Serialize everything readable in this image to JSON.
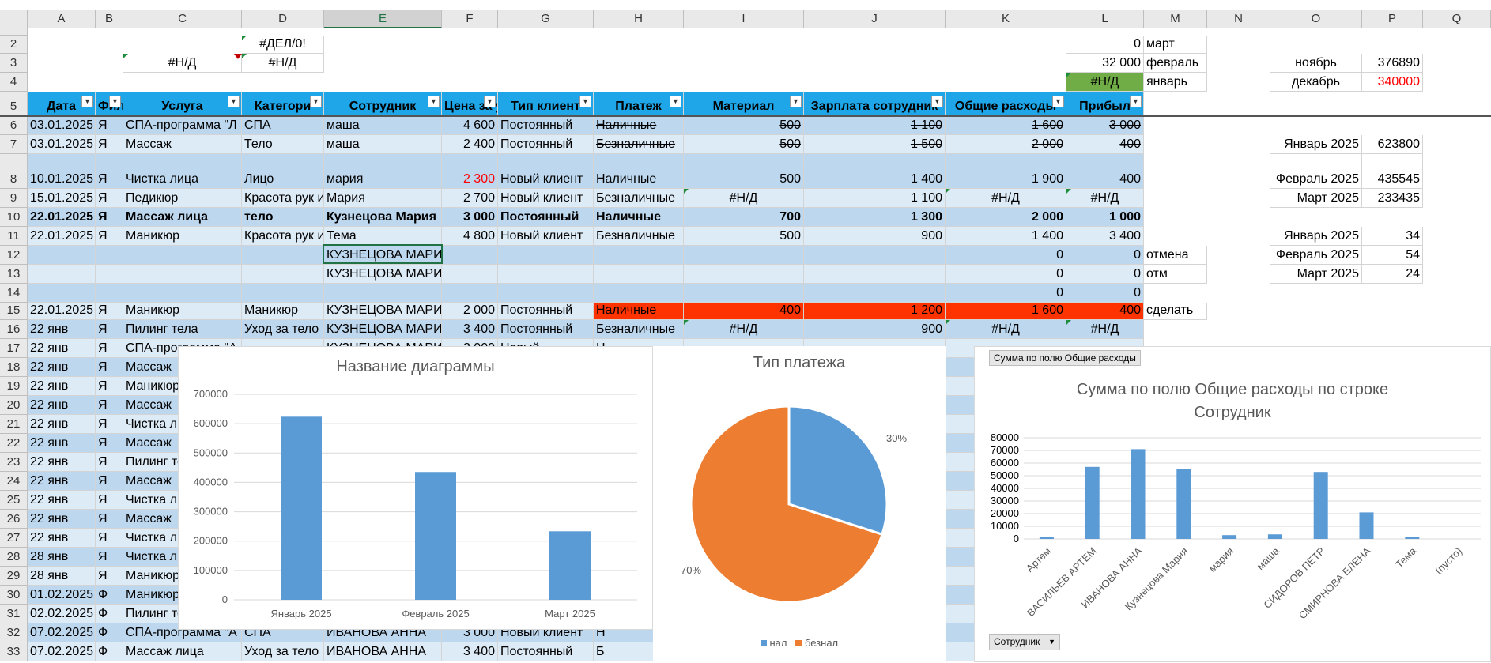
{
  "colors": {
    "header_fill": "#1ea6e8",
    "band1": "#bdd7ee",
    "band2": "#ddebf7",
    "green": "#70ad47",
    "red_fill": "#ff3300",
    "bar": "#5b9bd5",
    "pie_orange": "#ed7d31",
    "error_red": "#ff0000"
  },
  "columns": [
    "A",
    "B",
    "C",
    "D",
    "E",
    "F",
    "G",
    "H",
    "I",
    "J",
    "K",
    "L",
    "M",
    "N",
    "O",
    "P",
    "Q"
  ],
  "row_numbers": [
    "2",
    "3",
    "4",
    "5",
    "6",
    "7",
    "8",
    "9",
    "10",
    "11",
    "12",
    "13",
    "14",
    "15",
    "16",
    "17",
    "18",
    "19",
    "20",
    "21",
    "22",
    "23",
    "24",
    "25",
    "26",
    "27",
    "28",
    "29",
    "30",
    "31",
    "32",
    "33"
  ],
  "top": {
    "d2": "#ДЕЛ/0!",
    "c3": "#Н/Д",
    "d3": "#Н/Д",
    "l2": "0",
    "m2": "март",
    "l3": "32 000",
    "m3": "февраль",
    "o3": "ноябрь",
    "p3": "376890",
    "l4": "#Н/Д",
    "m4": "январь",
    "o4": "декабрь",
    "p4": "340000"
  },
  "headers": {
    "a": "Дата",
    "b": "Фил",
    "c": "Услуга",
    "d": "Категори",
    "e": "Сотрудник",
    "f": "Цена за у",
    "g": "Тип клиент",
    "h": "Платеж",
    "i": "Материал",
    "j": "Зарплата сотрудник",
    "k": "Общие расходы",
    "l": "Прибыл"
  },
  "rows": [
    {
      "a": "03.01.2025",
      "b": "Я",
      "c": "СПА-программа \"Л",
      "d": "СПА",
      "e": "маша",
      "f": "4 600",
      "g": "Постоянный",
      "h": "Наличные",
      "i": "500",
      "j": "1 100",
      "k": "1 600",
      "l": "3 000"
    },
    {
      "a": "03.01.2025",
      "b": "Я",
      "c": "Массаж",
      "d": "Тело",
      "e": "маша",
      "f": "2 400",
      "g": "Постоянный",
      "h": "Безналичные",
      "i": "500",
      "j": "1 500",
      "k": "2 000",
      "l": "400"
    },
    {
      "a": "10.01.2025",
      "b": "Я",
      "c": "Чистка лица",
      "d": "Лицо",
      "e": "мария",
      "f": "2 300",
      "g": "Новый клиент",
      "h": "Наличные",
      "i": "500",
      "j": "1 400",
      "k": "1 900",
      "l": "400"
    },
    {
      "a": "15.01.2025",
      "b": "Я",
      "c": "Педикюр",
      "d": "Красота рук и",
      "e": "Мария",
      "f": "2 700",
      "g": "Новый клиент",
      "h": "Безналичные",
      "i": "#Н/Д",
      "j": "1 100",
      "k": "#Н/Д",
      "l": "#Н/Д"
    },
    {
      "a": "22.01.2025",
      "b": "Я",
      "c": "Массаж лица",
      "d": "тело",
      "e": "Кузнецова Мария",
      "f": "3 000",
      "g": "Постоянный",
      "h": "Наличные",
      "i": "700",
      "j": "1 300",
      "k": "2 000",
      "l": "1 000"
    },
    {
      "a": "22.01.2025",
      "b": "Я",
      "c": "Маникюр",
      "d": "Красота рук и",
      "e": "Тема",
      "f": "4 800",
      "g": "Новый клиент",
      "h": "Безналичные",
      "i": "500",
      "j": "900",
      "k": "1 400",
      "l": "3 400"
    },
    {
      "a": "",
      "b": "",
      "c": "",
      "d": "",
      "e": "КУЗНЕЦОВА МАРИЯ",
      "f": "",
      "g": "",
      "h": "",
      "i": "",
      "j": "",
      "k": "0",
      "l": "0",
      "m": "отмена"
    },
    {
      "a": "",
      "b": "",
      "c": "",
      "d": "",
      "e": "КУЗНЕЦОВА МАРИЯ",
      "f": "",
      "g": "",
      "h": "",
      "i": "",
      "j": "",
      "k": "0",
      "l": "0",
      "m": "отм"
    },
    {
      "a": "",
      "b": "",
      "c": "",
      "d": "",
      "e": "",
      "f": "",
      "g": "",
      "h": "",
      "i": "",
      "j": "",
      "k": "0",
      "l": "0"
    },
    {
      "a": "22.01.2025",
      "b": "Я",
      "c": "Маникюр",
      "d": "Маникюр",
      "e": "КУЗНЕЦОВА МАРИЯ",
      "f": "2 000",
      "g": "Постоянный",
      "h": "Наличные",
      "i": "400",
      "j": "1 200",
      "k": "1 600",
      "l": "400",
      "m": "сделать"
    },
    {
      "a": "22 янв",
      "b": "Я",
      "c": "Пилинг тела",
      "d": "Уход за тело",
      "e": "КУЗНЕЦОВА МАРИЯ",
      "f": "3 400",
      "g": "Постоянный",
      "h": "Безналичные",
      "i": "#Н/Д",
      "j": "900",
      "k": "#Н/Д",
      "l": "#Н/Д"
    },
    {
      "a": "22 янв",
      "b": "Я",
      "c": "СПА-программа \"А",
      "e": "КУЗНЕЦОВА МАРИЯ",
      "f": "2 000",
      "g": "Новый",
      "h": "Н"
    },
    {
      "a": "22 янв",
      "b": "Я",
      "c": "Массаж"
    },
    {
      "a": "22 янв",
      "b": "Я",
      "c": "Маникюр"
    },
    {
      "a": "22 янв",
      "b": "Я",
      "c": "Массаж"
    },
    {
      "a": "22 янв",
      "b": "Я",
      "c": "Чистка лица"
    },
    {
      "a": "22 янв",
      "b": "Я",
      "c": "Массаж"
    },
    {
      "a": "22 янв",
      "b": "Я",
      "c": "Пилинг тела"
    },
    {
      "a": "22 янв",
      "b": "Я",
      "c": "Массаж"
    },
    {
      "a": "22 янв",
      "b": "Я",
      "c": "Чистка лица"
    },
    {
      "a": "22 янв",
      "b": "Я",
      "c": "Массаж"
    },
    {
      "a": "22 янв",
      "b": "Я",
      "c": "Чистка лица"
    },
    {
      "a": "28 янв",
      "b": "Я",
      "c": "Чистка лица"
    },
    {
      "a": "28 янв",
      "b": "Я",
      "c": "Маникюр"
    },
    {
      "a": "01.02.2025",
      "b": "Ф",
      "c": "Маникюр"
    },
    {
      "a": "02.02.2025",
      "b": "Ф",
      "c": "Пилинг тела"
    },
    {
      "a": "07.02.2025",
      "b": "Ф",
      "c": "СПА-программа \"А",
      "d": "СПА",
      "e": "ИВАНОВА АННА",
      "f": "3 000",
      "g": "Новый клиент",
      "h": "Н"
    },
    {
      "a": "07.02.2025",
      "b": "Ф",
      "c": "Массаж лица",
      "d": "Уход за тело",
      "e": "ИВАНОВА АННА",
      "f": "3 400",
      "g": "Постоянный",
      "h": "Б"
    }
  ],
  "side": {
    "o7": "Январь 2025",
    "p7": "623800",
    "o8": "Февраль 2025",
    "p8": "435545",
    "o9": "Март 2025",
    "p9": "233435",
    "o11": "Январь 2025",
    "p11": "34",
    "o12": "Февраль 2025",
    "p12": "54",
    "o13": "Март 2025",
    "p13": "24"
  },
  "charts": {
    "bar1": {
      "title": "Название диаграммы"
    },
    "pie": {
      "title": "Тип платежа",
      "label_big": "70%",
      "label_small": "30%",
      "legend1": "нал",
      "legend2": "безнал"
    },
    "pivot": {
      "field_button": "Сумма по полю Общие расходы",
      "title_line1": "Сумма по полю Общие расходы по строке",
      "title_line2": "Сотрудник",
      "axis_button": "Сотрудник",
      "axis_button_icon": "dropdown-arrow-icon"
    }
  },
  "chart_data": [
    {
      "type": "bar",
      "title": "Название диаграммы",
      "categories": [
        "Январь 2025",
        "Февраль 2025",
        "Март 2025"
      ],
      "values": [
        623800,
        435545,
        233435
      ],
      "ylim": [
        0,
        700000
      ],
      "yticks": [
        "0",
        "100000",
        "200000",
        "300000",
        "400000",
        "500000",
        "600000",
        "700000"
      ]
    },
    {
      "type": "pie",
      "title": "Тип платежа",
      "labels": [
        "нал",
        "безнал"
      ],
      "values": [
        30,
        70
      ]
    },
    {
      "type": "bar",
      "title": "Сумма по полю Общие расходы по строке Сотрудник",
      "categories": [
        "Артем",
        "ВАСИЛЬЕВ АРТЕМ",
        "ИВАНОВА АННА",
        "Кузнецова Мария",
        "мария",
        "маша",
        "СИДОРОВ ПЕТР",
        "СМИРНОВА ЕЛЕНА",
        "Тема",
        "(пусто)"
      ],
      "values": [
        1400,
        57000,
        71000,
        55000,
        3000,
        3600,
        53000,
        21000,
        1400,
        0
      ],
      "ylim": [
        0,
        80000
      ],
      "yticks": [
        "0",
        "10000",
        "20000",
        "30000",
        "40000",
        "50000",
        "60000",
        "70000",
        "80000"
      ]
    }
  ]
}
